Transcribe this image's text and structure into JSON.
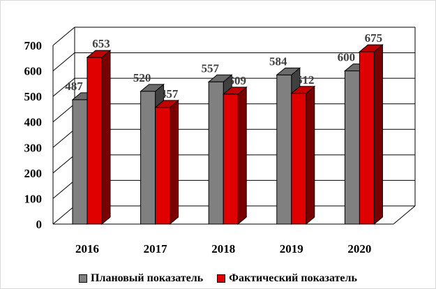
{
  "chart_data": {
    "type": "bar",
    "title": "",
    "xlabel": "",
    "ylabel": "",
    "categories": [
      "2016",
      "2017",
      "2018",
      "2019",
      "2020"
    ],
    "series": [
      {
        "name": "Плановый показатель",
        "values": [
          487,
          520,
          557,
          584,
          600
        ],
        "color": "#808080"
      },
      {
        "name": "Фактический показатель",
        "values": [
          653,
          457,
          509,
          512,
          675
        ],
        "color": "#e00000"
      }
    ],
    "ylim": [
      0,
      700
    ],
    "yticks": [
      "0",
      "100",
      "200",
      "300",
      "400",
      "500",
      "600",
      "700"
    ],
    "grid": true,
    "legend_position": "bottom",
    "style": "3d-clustered-column"
  }
}
